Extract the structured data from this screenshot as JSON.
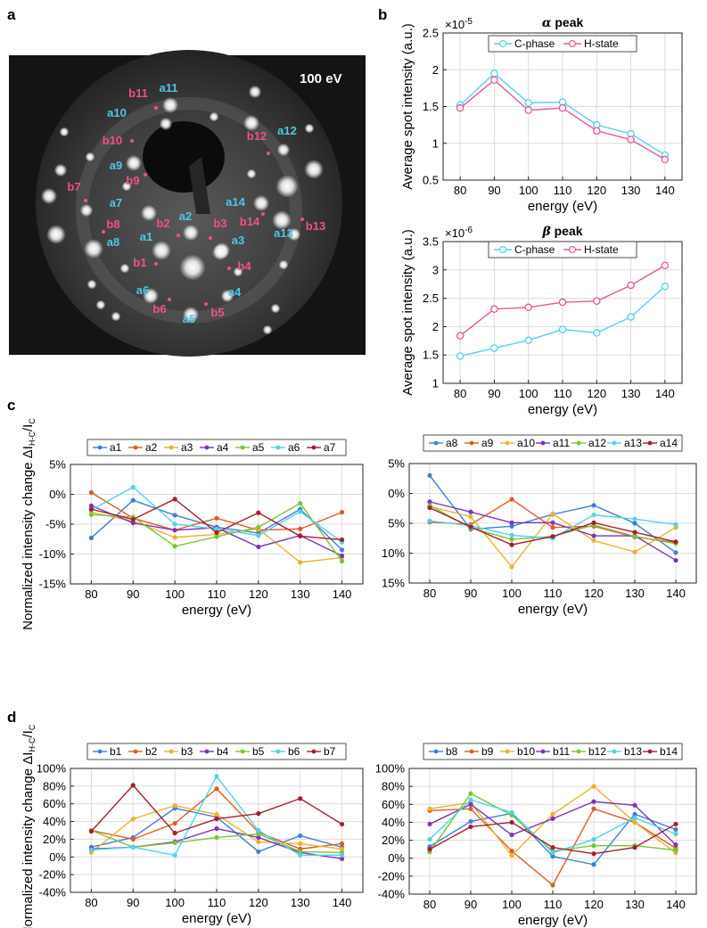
{
  "panel_letters": [
    "a",
    "b",
    "c",
    "d"
  ],
  "leed": {
    "energy_label": "100 eV",
    "a_color": "#4fc6e8",
    "b_color": "#f0508c",
    "labels_a": [
      "a1",
      "a2",
      "a3",
      "a4",
      "a5",
      "a6",
      "a7",
      "a8",
      "a9",
      "a10",
      "a11",
      "a12",
      "a13",
      "a14"
    ],
    "labels_b": [
      "b1",
      "b2",
      "b3",
      "b4",
      "b5",
      "b6",
      "b7",
      "b8",
      "b9",
      "b10",
      "b11",
      "b12",
      "b13",
      "b14"
    ]
  },
  "chart_data": [
    {
      "id": "b-alpha",
      "type": "line",
      "title": "α peak",
      "title_greek": "α",
      "title_rest": " peak",
      "exponent_label": "×10",
      "exponent_power": "-5",
      "xlabel": "energy (eV)",
      "ylabel": "Average spot intensity (a.u.)",
      "x": [
        80,
        90,
        100,
        110,
        120,
        130,
        140
      ],
      "xlim": [
        75,
        145
      ],
      "ylim": [
        0.5,
        2.5
      ],
      "yticks": [
        0.5,
        1,
        1.5,
        2,
        2.5
      ],
      "ytick_labels": [
        "0.5",
        "1",
        "1.5",
        "2",
        "2.5"
      ],
      "grid": true,
      "legend": "top-center-horizontal",
      "marker": "open-circle",
      "series": [
        {
          "name": "C-phase",
          "color": "#4fd3ea",
          "values": [
            1.52,
            1.95,
            1.55,
            1.56,
            1.25,
            1.13,
            0.84
          ]
        },
        {
          "name": "H-state",
          "color": "#e8559a",
          "values": [
            1.48,
            1.86,
            1.45,
            1.48,
            1.17,
            1.05,
            0.78
          ]
        }
      ]
    },
    {
      "id": "b-beta",
      "type": "line",
      "title": "β peak",
      "title_greek": "β",
      "title_rest": " peak",
      "exponent_label": "×10",
      "exponent_power": "-6",
      "xlabel": "energy (eV)",
      "ylabel": "Average spot intensity (a.u.)",
      "x": [
        80,
        90,
        100,
        110,
        120,
        130,
        140
      ],
      "xlim": [
        75,
        145
      ],
      "ylim": [
        1,
        3.5
      ],
      "yticks": [
        1,
        1.5,
        2,
        2.5,
        3,
        3.5
      ],
      "ytick_labels": [
        "1",
        "1.5",
        "2",
        "2.5",
        "3",
        "3.5"
      ],
      "grid": true,
      "legend": "top-center-horizontal",
      "marker": "open-circle",
      "series": [
        {
          "name": "C-phase",
          "color": "#4fd3ea",
          "values": [
            1.48,
            1.62,
            1.76,
            1.95,
            1.89,
            2.17,
            2.71
          ]
        },
        {
          "name": "H-state",
          "color": "#e8559a",
          "values": [
            1.84,
            2.31,
            2.34,
            2.43,
            2.45,
            2.73,
            3.08
          ]
        }
      ]
    },
    {
      "id": "c-left",
      "type": "line",
      "xlabel": "energy (eV)",
      "ylabel": "Normalized intensity change ΔI",
      "ylabel_sub": "H-C",
      "ylabel_tail": "/I",
      "ylabel_tail_sub": "C",
      "x": [
        80,
        90,
        100,
        110,
        120,
        130,
        140
      ],
      "xlim": [
        75,
        145
      ],
      "ylim": [
        -15,
        5
      ],
      "yticks": [
        -15,
        -10,
        -5,
        0,
        5
      ],
      "ytick_labels": [
        "-15%",
        "-10%",
        "-5%",
        "0%",
        "5%"
      ],
      "grid": true,
      "legend": "above-horizontal",
      "marker": "filled-dot",
      "series": [
        {
          "name": "a1",
          "color": "#3f7fd6",
          "values": [
            -7.3,
            -1.0,
            -3.5,
            -5.5,
            -6.5,
            -2.5,
            -9.3
          ]
        },
        {
          "name": "a2",
          "color": "#e05a22",
          "values": [
            0.3,
            -4.0,
            -6.0,
            -4.0,
            -6.0,
            -5.8,
            -3.0
          ]
        },
        {
          "name": "a3",
          "color": "#eab32c",
          "values": [
            -3.0,
            -4.5,
            -7.2,
            -6.7,
            -5.8,
            -11.4,
            -10.6
          ]
        },
        {
          "name": "a4",
          "color": "#7d34b8",
          "values": [
            -1.9,
            -4.8,
            -6.0,
            -5.6,
            -8.8,
            -6.9,
            -10.3
          ]
        },
        {
          "name": "a5",
          "color": "#7ac537",
          "values": [
            -3.4,
            -3.8,
            -8.7,
            -7.1,
            -5.5,
            -1.5,
            -11.2
          ]
        },
        {
          "name": "a6",
          "color": "#4fd3ea",
          "values": [
            -2.6,
            1.2,
            -5.0,
            -5.8,
            -6.9,
            -2.9,
            -8.0
          ]
        },
        {
          "name": "a7",
          "color": "#a51f2f",
          "values": [
            -2.5,
            -4.2,
            -0.8,
            -6.4,
            -3.1,
            -7.0,
            -7.6
          ]
        }
      ]
    },
    {
      "id": "c-right",
      "type": "line",
      "xlabel": "energy (eV)",
      "x": [
        80,
        90,
        100,
        110,
        120,
        130,
        140
      ],
      "xlim": [
        75,
        145
      ],
      "ylim": [
        -5,
        15
      ],
      "y_inverted": true,
      "yticks": [
        -5,
        0,
        5,
        10,
        15
      ],
      "ytick_labels": [
        "5%",
        "0%",
        "5%",
        "10%",
        "15%"
      ],
      "grid": true,
      "legend": "above-horizontal",
      "marker": "filled-dot",
      "series": [
        {
          "name": "a8",
          "color": "#3f7fd6",
          "values": [
            -3.0,
            6.0,
            5.5,
            3.5,
            2.0,
            5.0,
            9.9
          ]
        },
        {
          "name": "a9",
          "color": "#e05a22",
          "values": [
            4.8,
            5.2,
            1.0,
            5.7,
            5.5,
            7.3,
            8.2
          ]
        },
        {
          "name": "a10",
          "color": "#eab32c",
          "values": [
            2.2,
            3.9,
            12.3,
            3.4,
            7.9,
            9.8,
            5.7
          ]
        },
        {
          "name": "a11",
          "color": "#7d34b8",
          "values": [
            1.4,
            3.1,
            4.9,
            4.9,
            7.1,
            7.1,
            11.2
          ]
        },
        {
          "name": "a12",
          "color": "#7ac537",
          "values": [
            2.0,
            5.8,
            7.7,
            7.2,
            5.3,
            7.2,
            8.4
          ]
        },
        {
          "name": "a13",
          "color": "#4fd3ea",
          "values": [
            4.6,
            5.4,
            7.0,
            7.5,
            3.6,
            4.3,
            5.2
          ]
        },
        {
          "name": "a14",
          "color": "#a51f2f",
          "values": [
            2.4,
            5.6,
            8.6,
            7.2,
            4.9,
            6.5,
            8.1
          ]
        }
      ]
    },
    {
      "id": "d-left",
      "type": "line",
      "xlabel": "energy (eV)",
      "ylabel": "Normalized intensity change ΔI",
      "ylabel_sub": "H-C",
      "ylabel_tail": "/I",
      "ylabel_tail_sub": "C",
      "x": [
        80,
        90,
        100,
        110,
        120,
        130,
        140
      ],
      "xlim": [
        75,
        145
      ],
      "ylim": [
        -40,
        100
      ],
      "yticks": [
        -40,
        -20,
        0,
        20,
        40,
        60,
        80,
        100
      ],
      "ytick_labels": [
        "-40%",
        "-20%",
        "0%",
        "20%",
        "40%",
        "60%",
        "80%",
        "100%"
      ],
      "grid": true,
      "legend": "above-horizontal",
      "marker": "filled-dot",
      "series": [
        {
          "name": "b1",
          "color": "#3f7fd6",
          "values": [
            11,
            22,
            55,
            45,
            6,
            24,
            11
          ]
        },
        {
          "name": "b2",
          "color": "#e05a22",
          "values": [
            30,
            20,
            38,
            77,
            28,
            9,
            15
          ]
        },
        {
          "name": "b3",
          "color": "#eab32c",
          "values": [
            5,
            43,
            58,
            48,
            17,
            15,
            9
          ]
        },
        {
          "name": "b4",
          "color": "#7d34b8",
          "values": [
            9,
            11,
            17,
            32,
            22,
            5,
            -2
          ]
        },
        {
          "name": "b5",
          "color": "#7ac537",
          "values": [
            30,
            11,
            16,
            22,
            26,
            6,
            5
          ]
        },
        {
          "name": "b6",
          "color": "#4fd3ea",
          "values": [
            8,
            11,
            2,
            91,
            30,
            2,
            2
          ]
        },
        {
          "name": "b7",
          "color": "#a51f2f",
          "values": [
            29,
            81,
            27,
            43,
            49,
            66,
            37
          ]
        }
      ]
    },
    {
      "id": "d-right",
      "type": "line",
      "xlabel": "energy (eV)",
      "x": [
        80,
        90,
        100,
        110,
        120,
        130,
        140
      ],
      "xlim": [
        75,
        145
      ],
      "ylim": [
        -40,
        100
      ],
      "yticks": [
        -40,
        -20,
        0,
        20,
        40,
        60,
        80,
        100
      ],
      "ytick_labels": [
        "-40%",
        "-20%",
        "0%",
        "20%",
        "40%",
        "60%",
        "80%",
        "100%"
      ],
      "grid": true,
      "legend": "above-horizontal",
      "marker": "filled-dot",
      "series": [
        {
          "name": "b8",
          "color": "#3f7fd6",
          "values": [
            13,
            41,
            50,
            2,
            -7,
            49,
            32
          ]
        },
        {
          "name": "b9",
          "color": "#e05a22",
          "values": [
            53,
            55,
            8,
            -30,
            55,
            40,
            11
          ]
        },
        {
          "name": "b10",
          "color": "#eab32c",
          "values": [
            55,
            62,
            3,
            49,
            80,
            40,
            6
          ]
        },
        {
          "name": "b11",
          "color": "#7d34b8",
          "values": [
            38,
            60,
            26,
            44,
            63,
            59,
            15
          ]
        },
        {
          "name": "b12",
          "color": "#7ac537",
          "values": [
            7,
            72,
            48,
            8,
            14,
            14,
            9
          ]
        },
        {
          "name": "b13",
          "color": "#4fd3ea",
          "values": [
            21,
            65,
            51,
            6,
            21,
            45,
            27
          ]
        },
        {
          "name": "b14",
          "color": "#a51f2f",
          "values": [
            10,
            35,
            40,
            12,
            5,
            12,
            38
          ]
        }
      ]
    }
  ]
}
